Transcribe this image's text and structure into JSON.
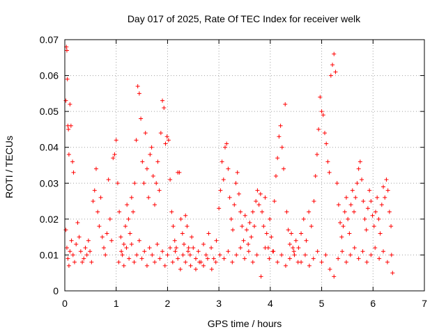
{
  "chart_data": {
    "type": "scatter",
    "title": "Day 017 of 2025, Rate Of TEC Index for receiver welk",
    "xlabel": "GPS time / hours",
    "ylabel": "ROTI / TECUs",
    "xlim": [
      0,
      7
    ],
    "ylim": [
      0,
      0.07
    ],
    "x_ticks": [
      "0",
      "1",
      "2",
      "3",
      "4",
      "5",
      "6",
      "7"
    ],
    "y_ticks": [
      "0",
      "0.01",
      "0.02",
      "0.03",
      "0.04",
      "0.05",
      "0.06",
      "0.07"
    ],
    "grid": true,
    "marker": "plus",
    "color": "#ff0000",
    "series": [
      {
        "name": "ROTI",
        "points": [
          [
            0.02,
            0.053
          ],
          [
            0.03,
            0.068
          ],
          [
            0.04,
            0.067
          ],
          [
            0.05,
            0.059
          ],
          [
            0.06,
            0.046
          ],
          [
            0.07,
            0.045
          ],
          [
            0.08,
            0.038
          ],
          [
            0.1,
            0.052
          ],
          [
            0.12,
            0.046
          ],
          [
            0.15,
            0.036
          ],
          [
            0.17,
            0.033
          ],
          [
            0.02,
            0.017
          ],
          [
            0.04,
            0.012
          ],
          [
            0.06,
            0.009
          ],
          [
            0.08,
            0.007
          ],
          [
            0.1,
            0.011
          ],
          [
            0.13,
            0.014
          ],
          [
            0.16,
            0.01
          ],
          [
            0.19,
            0.008
          ],
          [
            0.22,
            0.013
          ],
          [
            0.25,
            0.019
          ],
          [
            0.28,
            0.015
          ],
          [
            0.31,
            0.011
          ],
          [
            0.34,
            0.008
          ],
          [
            0.37,
            0.009
          ],
          [
            0.4,
            0.012
          ],
          [
            0.43,
            0.01
          ],
          [
            0.46,
            0.014
          ],
          [
            0.49,
            0.011
          ],
          [
            0.52,
            0.008
          ],
          [
            0.55,
            0.025
          ],
          [
            0.58,
            0.028
          ],
          [
            0.61,
            0.034
          ],
          [
            0.64,
            0.022
          ],
          [
            0.67,
            0.018
          ],
          [
            0.7,
            0.026
          ],
          [
            0.73,
            0.015
          ],
          [
            0.76,
            0.012
          ],
          [
            0.79,
            0.01
          ],
          [
            0.82,
            0.016
          ],
          [
            0.85,
            0.031
          ],
          [
            0.88,
            0.02
          ],
          [
            0.91,
            0.014
          ],
          [
            0.94,
            0.037
          ],
          [
            0.97,
            0.038
          ],
          [
            1.0,
            0.042
          ],
          [
            1.03,
            0.03
          ],
          [
            1.06,
            0.022
          ],
          [
            1.09,
            0.015
          ],
          [
            1.12,
            0.01
          ],
          [
            1.15,
            0.013
          ],
          [
            1.18,
            0.018
          ],
          [
            1.21,
            0.024
          ],
          [
            1.24,
            0.02
          ],
          [
            1.27,
            0.016
          ],
          [
            1.3,
            0.026
          ],
          [
            1.33,
            0.022
          ],
          [
            1.36,
            0.03
          ],
          [
            1.39,
            0.042
          ],
          [
            1.42,
            0.057
          ],
          [
            1.45,
            0.055
          ],
          [
            1.48,
            0.048
          ],
          [
            1.51,
            0.036
          ],
          [
            1.54,
            0.03
          ],
          [
            1.57,
            0.044
          ],
          [
            1.6,
            0.034
          ],
          [
            1.63,
            0.026
          ],
          [
            1.66,
            0.038
          ],
          [
            1.69,
            0.04
          ],
          [
            1.72,
            0.032
          ],
          [
            1.75,
            0.024
          ],
          [
            1.78,
            0.03
          ],
          [
            1.81,
            0.036
          ],
          [
            1.84,
            0.028
          ],
          [
            1.87,
            0.044
          ],
          [
            1.9,
            0.053
          ],
          [
            1.93,
            0.051
          ],
          [
            1.96,
            0.041
          ],
          [
            1.99,
            0.043
          ],
          [
            2.02,
            0.042
          ],
          [
            2.05,
            0.031
          ],
          [
            2.08,
            0.022
          ],
          [
            2.11,
            0.018
          ],
          [
            2.14,
            0.014
          ],
          [
            2.17,
            0.012
          ],
          [
            2.2,
            0.033
          ],
          [
            2.23,
            0.033
          ],
          [
            2.26,
            0.02
          ],
          [
            2.29,
            0.016
          ],
          [
            2.32,
            0.013
          ],
          [
            2.35,
            0.021
          ],
          [
            2.38,
            0.018
          ],
          [
            2.41,
            0.012
          ],
          [
            2.44,
            0.01
          ],
          [
            2.47,
            0.015
          ],
          [
            1.05,
            0.008
          ],
          [
            1.1,
            0.011
          ],
          [
            1.15,
            0.007
          ],
          [
            1.2,
            0.012
          ],
          [
            1.25,
            0.009
          ],
          [
            1.3,
            0.013
          ],
          [
            1.35,
            0.008
          ],
          [
            1.4,
            0.01
          ],
          [
            1.45,
            0.014
          ],
          [
            1.5,
            0.009
          ],
          [
            1.55,
            0.011
          ],
          [
            1.6,
            0.007
          ],
          [
            1.65,
            0.012
          ],
          [
            1.7,
            0.01
          ],
          [
            1.75,
            0.008
          ],
          [
            1.8,
            0.013
          ],
          [
            1.85,
            0.009
          ],
          [
            1.9,
            0.011
          ],
          [
            1.95,
            0.007
          ],
          [
            2.0,
            0.01
          ],
          [
            2.05,
            0.012
          ],
          [
            2.1,
            0.008
          ],
          [
            2.15,
            0.011
          ],
          [
            2.2,
            0.009
          ],
          [
            2.25,
            0.006
          ],
          [
            2.3,
            0.01
          ],
          [
            2.35,
            0.008
          ],
          [
            2.4,
            0.011
          ],
          [
            2.45,
            0.007
          ],
          [
            2.5,
            0.012
          ],
          [
            2.55,
            0.009
          ],
          [
            2.6,
            0.011
          ],
          [
            2.65,
            0.008
          ],
          [
            2.7,
            0.013
          ],
          [
            2.75,
            0.01
          ],
          [
            2.8,
            0.016
          ],
          [
            2.85,
            0.012
          ],
          [
            2.9,
            0.009
          ],
          [
            2.95,
            0.014
          ],
          [
            3.0,
            0.023
          ],
          [
            3.03,
            0.028
          ],
          [
            3.06,
            0.036
          ],
          [
            3.09,
            0.031
          ],
          [
            3.12,
            0.04
          ],
          [
            3.15,
            0.041
          ],
          [
            3.18,
            0.034
          ],
          [
            3.21,
            0.026
          ],
          [
            3.24,
            0.02
          ],
          [
            3.27,
            0.017
          ],
          [
            3.3,
            0.024
          ],
          [
            3.33,
            0.03
          ],
          [
            3.36,
            0.033
          ],
          [
            3.39,
            0.027
          ],
          [
            3.42,
            0.022
          ],
          [
            3.45,
            0.018
          ],
          [
            3.48,
            0.014
          ],
          [
            3.51,
            0.021
          ],
          [
            3.54,
            0.017
          ],
          [
            3.57,
            0.013
          ],
          [
            3.6,
            0.019
          ],
          [
            3.63,
            0.015
          ],
          [
            3.66,
            0.022
          ],
          [
            3.69,
            0.018
          ],
          [
            3.72,
            0.025
          ],
          [
            3.75,
            0.028
          ],
          [
            3.78,
            0.024
          ],
          [
            3.81,
            0.027
          ],
          [
            3.84,
            0.022
          ],
          [
            3.87,
            0.018
          ],
          [
            3.9,
            0.026
          ],
          [
            3.93,
            0.016
          ],
          [
            3.96,
            0.012
          ],
          [
            3.99,
            0.02
          ],
          [
            4.02,
            0.015
          ],
          [
            4.05,
            0.011
          ],
          [
            4.08,
            0.025
          ],
          [
            4.11,
            0.032
          ],
          [
            4.14,
            0.037
          ],
          [
            4.17,
            0.043
          ],
          [
            4.2,
            0.046
          ],
          [
            4.23,
            0.04
          ],
          [
            4.26,
            0.034
          ],
          [
            4.29,
            0.052
          ],
          [
            4.32,
            0.022
          ],
          [
            4.35,
            0.017
          ],
          [
            4.38,
            0.013
          ],
          [
            4.41,
            0.016
          ],
          [
            4.44,
            0.012
          ],
          [
            4.47,
            0.01
          ],
          [
            4.5,
            0.014
          ],
          [
            2.55,
            0.006
          ],
          [
            2.62,
            0.008
          ],
          [
            2.7,
            0.007
          ],
          [
            2.78,
            0.009
          ],
          [
            2.86,
            0.006
          ],
          [
            2.94,
            0.008
          ],
          [
            3.02,
            0.01
          ],
          [
            3.1,
            0.009
          ],
          [
            3.18,
            0.011
          ],
          [
            3.26,
            0.008
          ],
          [
            3.34,
            0.01
          ],
          [
            3.42,
            0.012
          ],
          [
            3.5,
            0.009
          ],
          [
            3.58,
            0.011
          ],
          [
            3.66,
            0.008
          ],
          [
            3.74,
            0.01
          ],
          [
            3.82,
            0.004
          ],
          [
            3.9,
            0.012
          ],
          [
            3.98,
            0.009
          ],
          [
            4.06,
            0.011
          ],
          [
            4.14,
            0.008
          ],
          [
            4.22,
            0.01
          ],
          [
            4.3,
            0.007
          ],
          [
            4.38,
            0.009
          ],
          [
            4.46,
            0.011
          ],
          [
            4.54,
            0.008
          ],
          [
            4.55,
            0.012
          ],
          [
            4.6,
            0.016
          ],
          [
            4.65,
            0.02
          ],
          [
            4.7,
            0.014
          ],
          [
            4.75,
            0.022
          ],
          [
            4.8,
            0.018
          ],
          [
            4.85,
            0.025
          ],
          [
            4.88,
            0.032
          ],
          [
            4.91,
            0.038
          ],
          [
            4.94,
            0.045
          ],
          [
            4.97,
            0.054
          ],
          [
            5.0,
            0.05
          ],
          [
            5.03,
            0.049
          ],
          [
            5.06,
            0.044
          ],
          [
            5.09,
            0.041
          ],
          [
            5.12,
            0.036
          ],
          [
            5.15,
            0.033
          ],
          [
            5.18,
            0.06
          ],
          [
            5.21,
            0.063
          ],
          [
            5.24,
            0.066
          ],
          [
            5.27,
            0.061
          ],
          [
            5.3,
            0.03
          ],
          [
            5.33,
            0.024
          ],
          [
            5.36,
            0.019
          ],
          [
            5.39,
            0.015
          ],
          [
            5.42,
            0.018
          ],
          [
            5.45,
            0.022
          ],
          [
            5.48,
            0.026
          ],
          [
            5.51,
            0.02
          ],
          [
            5.54,
            0.016
          ],
          [
            5.57,
            0.024
          ],
          [
            5.6,
            0.028
          ],
          [
            5.63,
            0.022
          ],
          [
            5.66,
            0.026
          ],
          [
            5.69,
            0.03
          ],
          [
            5.72,
            0.034
          ],
          [
            5.75,
            0.036
          ],
          [
            5.78,
            0.031
          ],
          [
            5.81,
            0.025
          ],
          [
            5.84,
            0.02
          ],
          [
            5.87,
            0.017
          ],
          [
            5.9,
            0.023
          ],
          [
            5.93,
            0.028
          ],
          [
            5.96,
            0.025
          ],
          [
            5.99,
            0.021
          ],
          [
            6.02,
            0.018
          ],
          [
            6.05,
            0.022
          ],
          [
            6.08,
            0.026
          ],
          [
            6.11,
            0.02
          ],
          [
            6.14,
            0.016
          ],
          [
            6.17,
            0.024
          ],
          [
            6.2,
            0.029
          ],
          [
            6.23,
            0.026
          ],
          [
            6.26,
            0.031
          ],
          [
            6.29,
            0.028
          ],
          [
            6.32,
            0.022
          ],
          [
            6.35,
            0.018
          ],
          [
            6.38,
            0.005
          ],
          [
            4.6,
            0.008
          ],
          [
            4.68,
            0.01
          ],
          [
            4.76,
            0.007
          ],
          [
            4.84,
            0.009
          ],
          [
            4.92,
            0.011
          ],
          [
            5.0,
            0.008
          ],
          [
            5.08,
            0.01
          ],
          [
            5.16,
            0.006
          ],
          [
            5.24,
            0.004
          ],
          [
            5.32,
            0.009
          ],
          [
            5.4,
            0.011
          ],
          [
            5.48,
            0.008
          ],
          [
            5.56,
            0.01
          ],
          [
            5.64,
            0.012
          ],
          [
            5.72,
            0.009
          ],
          [
            5.8,
            0.011
          ],
          [
            5.88,
            0.008
          ],
          [
            5.96,
            0.01
          ],
          [
            6.04,
            0.012
          ],
          [
            6.12,
            0.009
          ],
          [
            6.2,
            0.011
          ],
          [
            6.28,
            0.008
          ],
          [
            6.36,
            0.01
          ]
        ]
      }
    ]
  }
}
